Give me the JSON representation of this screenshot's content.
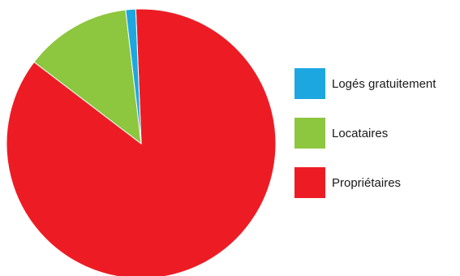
{
  "chart_data": {
    "type": "pie",
    "title": "",
    "start_angle_deg": -2.3,
    "direction": "clockwise",
    "legend_position": "right",
    "slices": [
      {
        "label": "Propriétaires",
        "value": 86.0,
        "color": "#ed1c24"
      },
      {
        "label": "Locataires",
        "value": 12.8,
        "color": "#8dc63f"
      },
      {
        "label": "Logés gratuitement",
        "value": 1.2,
        "color": "#1ca7e0"
      }
    ],
    "legend_order": [
      "Logés gratuitement",
      "Locataires",
      "Propriétaires"
    ]
  }
}
